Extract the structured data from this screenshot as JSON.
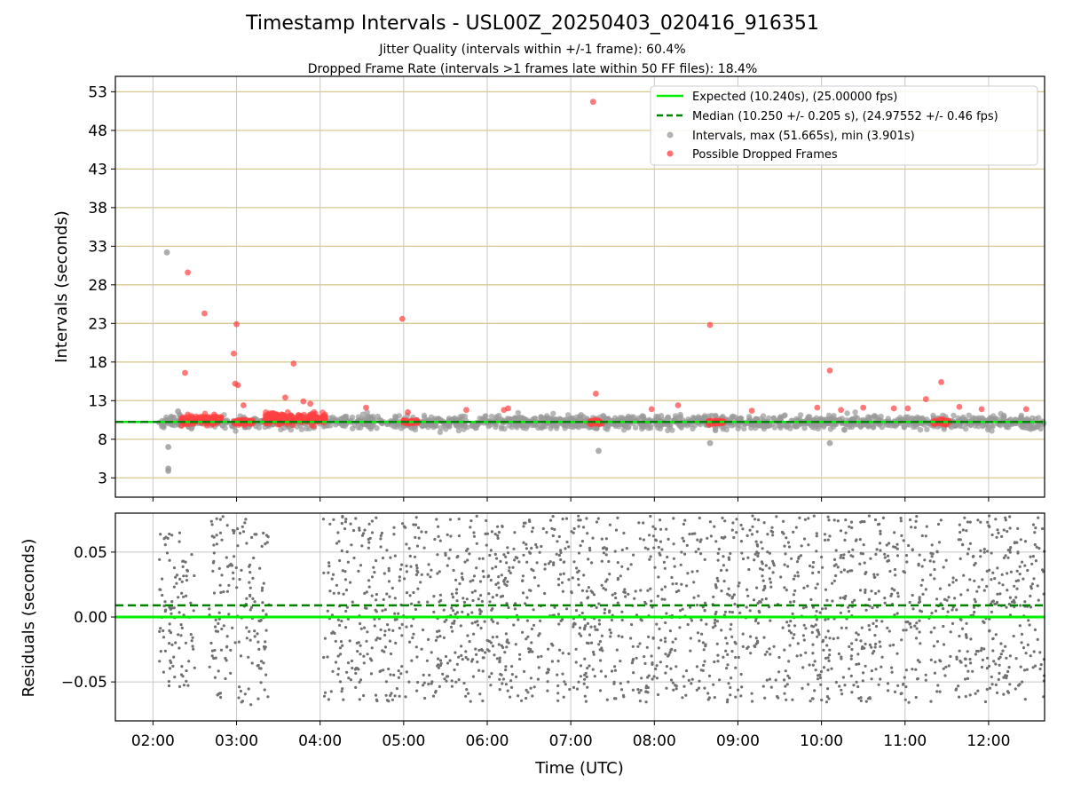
{
  "chart": {
    "title": "Timestamp Intervals - USL00Z_20250403_020416_916351",
    "subtitle_1": "Jitter Quality (intervals within +/-1 frame): 60.4%",
    "subtitle_2": "Dropped Frame Rate (intervals >1 frames late within 50 FF files): 18.4%"
  },
  "colors": {
    "expected_line": "#00ee00",
    "median_line": "#008000",
    "intervals": "#999999",
    "dropped": "#ff4040",
    "residuals": "#707070",
    "h_grid_top": "#d8c890",
    "grid": "#c8c8c8"
  },
  "chart_data": [
    {
      "type": "scatter",
      "panel": "top",
      "ylabel": "Intervals (seconds)",
      "x_range_hours": [
        1.55,
        12.67
      ],
      "ylim": [
        0.5,
        55.0
      ],
      "y_ticks": [
        3,
        8,
        13,
        18,
        23,
        28,
        33,
        38,
        43,
        48,
        53
      ],
      "y_tick_labels": [
        "3",
        "8",
        "13",
        "18",
        "23",
        "28",
        "33",
        "38",
        "43",
        "48",
        "53"
      ],
      "grid": true,
      "legend_position": "top-right",
      "legend": {
        "expected": "Expected (10.240s), (25.00000 fps)",
        "median": "Median (10.250 +/- 0.205 s), (24.97552 +/- 0.46 fps)",
        "intervals": "Intervals, max (51.665s), min (3.901s)",
        "dropped": "Possible Dropped Frames"
      },
      "expected_value": 10.24,
      "median_value": 10.25,
      "interval_band": {
        "center": 10.2,
        "spread": 0.9
      },
      "interval_outliers": [
        {
          "time": "02:10",
          "value": 32.2
        },
        {
          "time": "02:11",
          "value": 7.0
        },
        {
          "time": "02:11",
          "value": 4.2
        },
        {
          "time": "02:11",
          "value": 3.9
        },
        {
          "time": "02:18",
          "value": 11.6
        },
        {
          "time": "07:20",
          "value": 6.5
        },
        {
          "time": "08:40",
          "value": 7.5
        },
        {
          "time": "10:06",
          "value": 7.5
        }
      ],
      "dropped_points": [
        {
          "time": "02:23",
          "value": 16.6
        },
        {
          "time": "02:25",
          "value": 29.6
        },
        {
          "time": "02:37",
          "value": 24.3
        },
        {
          "time": "02:58",
          "value": 19.1
        },
        {
          "time": "03:00",
          "value": 22.9
        },
        {
          "time": "02:59",
          "value": 15.2
        },
        {
          "time": "03:01",
          "value": 15.0
        },
        {
          "time": "03:41",
          "value": 17.8
        },
        {
          "time": "03:35",
          "value": 13.4
        },
        {
          "time": "03:48",
          "value": 12.9
        },
        {
          "time": "03:53",
          "value": 12.6
        },
        {
          "time": "04:59",
          "value": 23.6
        },
        {
          "time": "07:16",
          "value": 51.7
        },
        {
          "time": "07:18",
          "value": 13.9
        },
        {
          "time": "08:40",
          "value": 22.8
        },
        {
          "time": "10:06",
          "value": 16.9
        },
        {
          "time": "11:26",
          "value": 15.4
        },
        {
          "time": "11:15",
          "value": 13.2
        },
        {
          "time": "04:33",
          "value": 12.1
        },
        {
          "time": "05:03",
          "value": 11.5
        },
        {
          "time": "05:45",
          "value": 11.8
        },
        {
          "time": "06:12",
          "value": 11.8
        },
        {
          "time": "06:15",
          "value": 12.0
        },
        {
          "time": "07:58",
          "value": 11.9
        },
        {
          "time": "08:17",
          "value": 12.4
        },
        {
          "time": "09:10",
          "value": 11.7
        },
        {
          "time": "09:57",
          "value": 12.1
        },
        {
          "time": "10:14",
          "value": 11.8
        },
        {
          "time": "10:30",
          "value": 12.1
        },
        {
          "time": "10:52",
          "value": 12.0
        },
        {
          "time": "11:02",
          "value": 12.0
        },
        {
          "time": "11:39",
          "value": 12.2
        },
        {
          "time": "11:55",
          "value": 11.9
        },
        {
          "time": "12:27",
          "value": 11.9
        },
        {
          "time": "03:05",
          "value": 12.4
        },
        {
          "time": "02:44",
          "value": 11.2
        }
      ],
      "dropped_clusters": [
        {
          "start": "02:20",
          "end": "02:49",
          "center": 10.5,
          "spread": 0.7
        },
        {
          "start": "02:58",
          "end": "03:12",
          "center": 10.2,
          "spread": 0.4
        },
        {
          "start": "03:20",
          "end": "04:04",
          "center": 10.7,
          "spread": 0.8
        },
        {
          "start": "04:59",
          "end": "05:10",
          "center": 10.2,
          "spread": 0.3
        },
        {
          "start": "07:13",
          "end": "07:23",
          "center": 10.2,
          "spread": 0.3
        },
        {
          "start": "08:38",
          "end": "08:50",
          "center": 10.2,
          "spread": 0.3
        },
        {
          "start": "11:20",
          "end": "11:32",
          "center": 10.2,
          "spread": 0.4
        }
      ]
    },
    {
      "type": "scatter",
      "panel": "bottom",
      "xlabel": "Time (UTC)",
      "ylabel": "Residuals (seconds)",
      "ylim": [
        -0.08,
        0.08
      ],
      "y_ticks": [
        -0.05,
        0.0,
        0.05
      ],
      "y_tick_labels": [
        "−0.05",
        "0.00",
        "0.05"
      ],
      "x_ticks": [
        "02:00",
        "03:00",
        "04:00",
        "05:00",
        "06:00",
        "07:00",
        "08:00",
        "09:00",
        "10:00",
        "11:00",
        "12:00"
      ],
      "grid": true,
      "expected_value": 0.0,
      "median_value": 0.009,
      "residual_ranges": [
        {
          "start": "02:04",
          "end": "02:30",
          "spread": 0.06
        },
        {
          "start": "02:40",
          "end": "03:24",
          "spread": 0.075
        },
        {
          "start": "04:02",
          "end": "12:40",
          "spread": 0.072
        }
      ]
    }
  ]
}
